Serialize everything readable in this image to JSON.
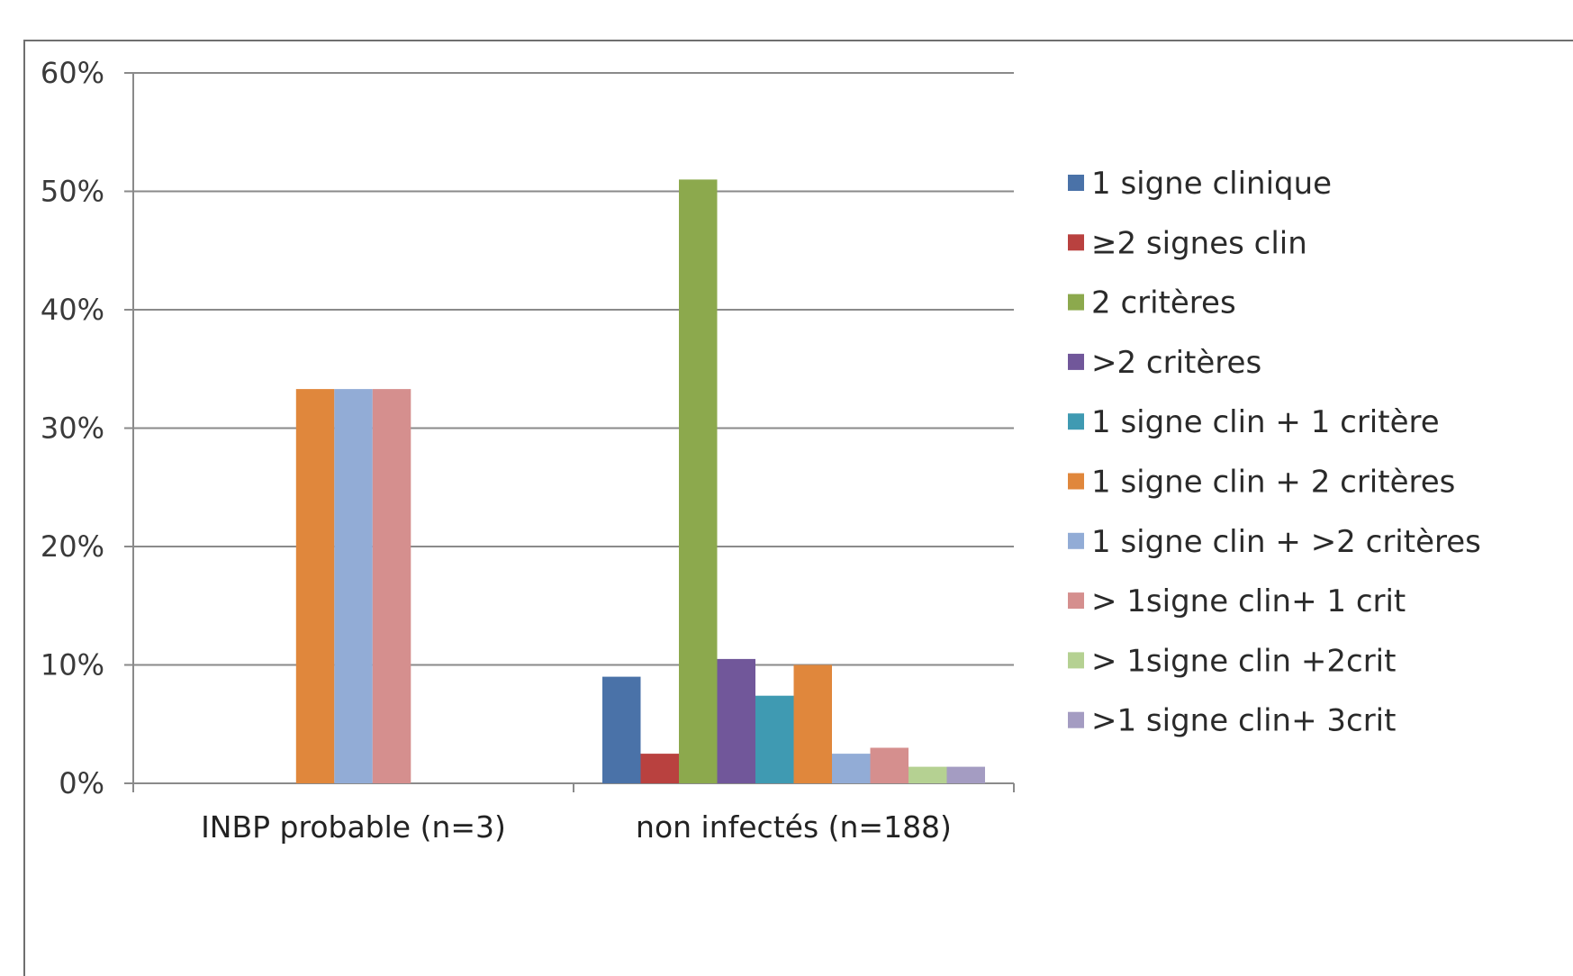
{
  "chart_data": {
    "type": "bar",
    "title": "",
    "xlabel": "",
    "ylabel": "",
    "ylim": [
      0,
      60
    ],
    "y_ticks": [
      "0%",
      "10%",
      "20%",
      "30%",
      "40%",
      "50%",
      "60%"
    ],
    "y_tick_values": [
      0,
      10,
      20,
      30,
      40,
      50,
      60
    ],
    "grid": true,
    "legend_position": "right",
    "categories": [
      "INBP probable (n=3)",
      "non infectés (n=188)"
    ],
    "series": [
      {
        "name": "1 signe clinique",
        "color": "#4a72a8",
        "values": [
          0,
          9
        ]
      },
      {
        "name": "≥2 signes clin",
        "color": "#b9413f",
        "values": [
          0,
          2.5
        ]
      },
      {
        "name": "2 critères",
        "color": "#8ca94d",
        "values": [
          0,
          51
        ]
      },
      {
        "name": ">2 critères",
        "color": "#71579a",
        "values": [
          0,
          10.5
        ]
      },
      {
        "name": "1 signe clin + 1 critère",
        "color": "#3f9ab2",
        "values": [
          0,
          7.4
        ]
      },
      {
        "name": "1 signe clin + 2 critères",
        "color": "#e0873c",
        "values": [
          33.3,
          10
        ]
      },
      {
        "name": "1 signe clin + >2 critères",
        "color": "#92acd6",
        "values": [
          33.3,
          2.5
        ]
      },
      {
        "name": "> 1signe clin+ 1 crit",
        "color": "#d58f8e",
        "values": [
          33.3,
          3
        ]
      },
      {
        "name": "> 1signe clin +2crit",
        "color": "#b5d192",
        "values": [
          0,
          1.4
        ]
      },
      {
        "name": ">1 signe clin+ 3crit",
        "color": "#a49cc2",
        "values": [
          0,
          1.4
        ]
      }
    ]
  }
}
